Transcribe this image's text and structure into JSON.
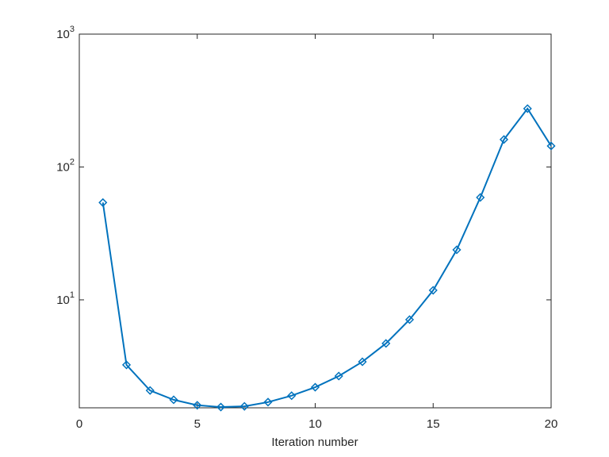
{
  "chart_data": {
    "type": "line",
    "xlabel": "Iteration number",
    "x": [
      1,
      2,
      3,
      4,
      5,
      6,
      7,
      8,
      9,
      10,
      11,
      12,
      13,
      14,
      15,
      16,
      17,
      18,
      19,
      20
    ],
    "series": [
      {
        "color": "#0072bd",
        "marker": "diamond",
        "values": [
          54,
          3.24,
          2.08,
          1.77,
          1.61,
          1.56,
          1.58,
          1.7,
          1.9,
          2.2,
          2.67,
          3.42,
          4.7,
          7.1,
          11.8,
          23.8,
          59,
          161,
          275,
          144
        ]
      }
    ],
    "xlim": [
      0,
      20
    ],
    "xticks": [
      0,
      5,
      10,
      15,
      20
    ],
    "ylim": [
      1.54,
      1000
    ],
    "yscale": "log",
    "yticks": [
      {
        "value": 10,
        "label": "10^1"
      },
      {
        "value": 100,
        "label": "10^2"
      },
      {
        "value": 1000,
        "label": "10^3"
      }
    ],
    "grid": false,
    "box": true
  }
}
